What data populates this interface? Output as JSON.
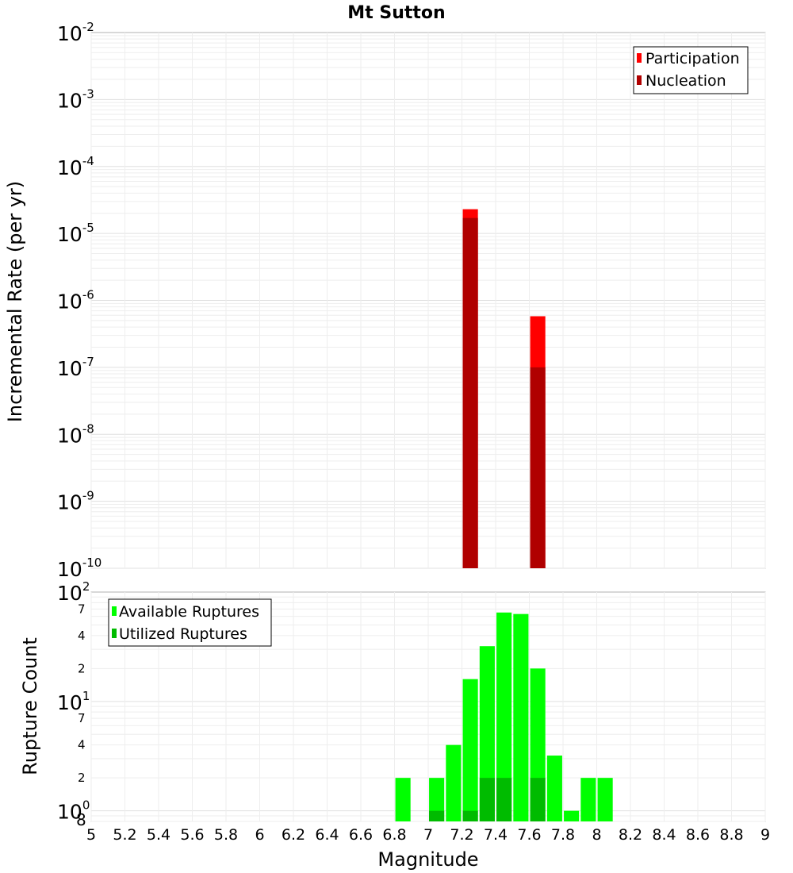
{
  "title": "Mt Sutton",
  "chart_data": [
    {
      "type": "bar",
      "ylabel": "Incremental Rate (per yr)",
      "yscale": "log",
      "ylim": [
        1e-10,
        0.01
      ],
      "xlim": [
        5,
        9
      ],
      "y_ticks": [
        {
          "base": "10",
          "exp": "-2"
        },
        {
          "base": "10",
          "exp": "-3"
        },
        {
          "base": "10",
          "exp": "-4"
        },
        {
          "base": "10",
          "exp": "-5"
        },
        {
          "base": "10",
          "exp": "-6"
        },
        {
          "base": "10",
          "exp": "-7"
        },
        {
          "base": "10",
          "exp": "-8"
        },
        {
          "base": "10",
          "exp": "-9"
        },
        {
          "base": "10",
          "exp": "-10"
        }
      ],
      "legend_position": "top-right",
      "series": [
        {
          "name": "Participation",
          "color": "#ff0000",
          "x": [
            7.25,
            7.65
          ],
          "values": [
            2.3e-05,
            5.8e-07
          ]
        },
        {
          "name": "Nucleation",
          "color": "#b00000",
          "x": [
            7.25,
            7.65
          ],
          "values": [
            1.7e-05,
            1e-07
          ]
        }
      ]
    },
    {
      "type": "bar",
      "ylabel": "Rupture Count",
      "xlabel": "Magnitude",
      "yscale": "log",
      "ylim": [
        0.8,
        100
      ],
      "xlim": [
        5,
        9
      ],
      "x_ticks": [
        "5",
        "5.2",
        "5.4",
        "5.6",
        "5.8",
        "6",
        "6.2",
        "6.4",
        "6.6",
        "6.8",
        "7",
        "7.2",
        "7.4",
        "7.6",
        "7.8",
        "8",
        "8.2",
        "8.4",
        "8.6",
        "8.8",
        "9"
      ],
      "y_major_ticks": [
        {
          "base": "10",
          "exp": "2"
        },
        {
          "base": "10",
          "exp": "1"
        },
        {
          "base": "10",
          "exp": "0"
        }
      ],
      "y_minor_ticks": [
        {
          "label": "7",
          "value": 70
        },
        {
          "label": "4",
          "value": 40
        },
        {
          "label": "2",
          "value": 20
        },
        {
          "label": "7",
          "value": 7
        },
        {
          "label": "4",
          "value": 4
        },
        {
          "label": "2",
          "value": 2
        },
        {
          "label": "8",
          "value": 0.8
        }
      ],
      "legend_position": "top-left",
      "series": [
        {
          "name": "Available Ruptures",
          "color": "#00ff00",
          "x": [
            6.85,
            7.05,
            7.15,
            7.25,
            7.35,
            7.45,
            7.55,
            7.65,
            7.75,
            7.85,
            7.95,
            8.05
          ],
          "values": [
            2,
            2,
            4,
            16,
            32,
            65,
            63,
            20,
            3.2,
            1,
            2,
            2
          ]
        },
        {
          "name": "Utilized Ruptures",
          "color": "#00bb00",
          "x": [
            7.05,
            7.25,
            7.35,
            7.45,
            7.65
          ],
          "values": [
            1,
            1,
            2,
            2,
            2
          ]
        }
      ]
    }
  ]
}
